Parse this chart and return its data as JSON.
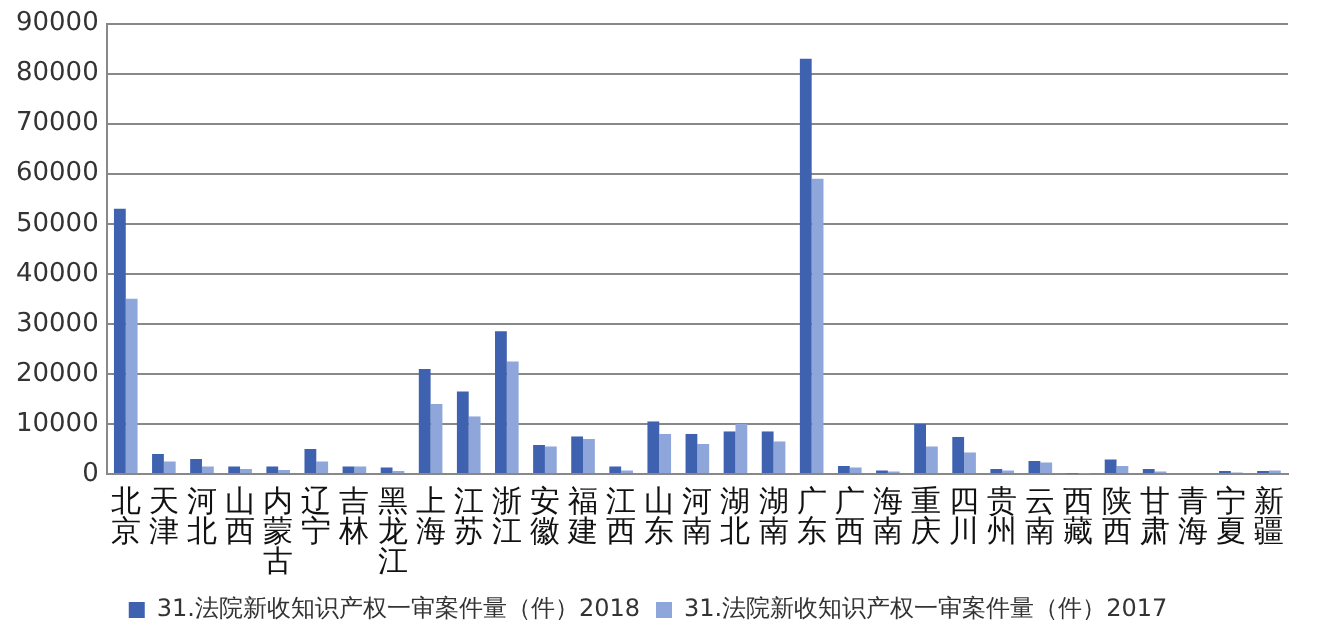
{
  "chart_data": {
    "type": "bar",
    "categories": [
      "北京",
      "天津",
      "河北",
      "山西",
      "内蒙古",
      "辽宁",
      "吉林",
      "黑龙江",
      "上海",
      "江苏",
      "浙江",
      "安徽",
      "福建",
      "江西",
      "山东",
      "河南",
      "湖北",
      "湖南",
      "广东",
      "广西",
      "海南",
      "重庆",
      "四川",
      "贵州",
      "云南",
      "西藏",
      "陕西",
      "甘肃",
      "青海",
      "宁夏",
      "新疆"
    ],
    "series": [
      {
        "name": "31.法院新收知识产权一审案件量（件）2018",
        "color": "#3f62b0",
        "values": [
          53000,
          4000,
          3000,
          1500,
          1500,
          5000,
          1500,
          1300,
          21000,
          16500,
          28500,
          5800,
          7500,
          1500,
          10500,
          8000,
          8500,
          8500,
          83000,
          1600,
          700,
          10000,
          7400,
          1000,
          2600,
          100,
          2900,
          1000,
          200,
          600,
          600
        ]
      },
      {
        "name": "31.法院新收知识产权一审案件量（件）2017",
        "color": "#8fa6da",
        "values": [
          35000,
          2500,
          1500,
          1000,
          800,
          2500,
          1500,
          600,
          14000,
          11500,
          22500,
          5500,
          7000,
          700,
          8000,
          6000,
          10000,
          6500,
          59000,
          1300,
          500,
          5500,
          4300,
          700,
          2300,
          100,
          1600,
          500,
          200,
          300,
          700
        ]
      }
    ],
    "ylim": [
      0,
      90000
    ],
    "yticks": [
      0,
      10000,
      20000,
      30000,
      40000,
      50000,
      60000,
      70000,
      80000,
      90000
    ],
    "grid": "y",
    "legend": "bottom"
  }
}
